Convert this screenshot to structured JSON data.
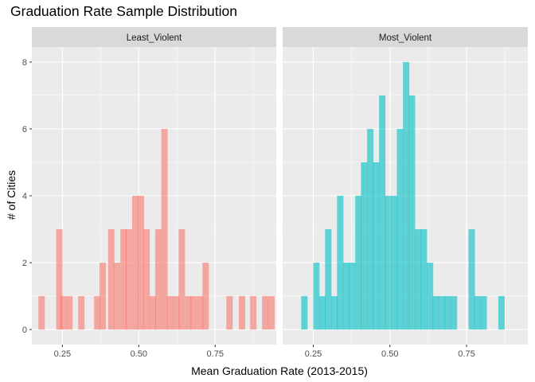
{
  "chart_data": {
    "type": "bar",
    "title": "Graduation Rate Sample Distribution",
    "xlabel": "Mean Graduation Rate (2013-2015)",
    "ylabel": "# of Cities",
    "xlim": [
      0.15,
      0.95
    ],
    "ylim": [
      -0.45,
      8.45
    ],
    "xticks": [
      {
        "value": 0.25,
        "label": "0.25"
      },
      {
        "value": 0.5,
        "label": "0.50"
      },
      {
        "value": 0.75,
        "label": "0.75"
      }
    ],
    "yticks": [
      {
        "value": 0,
        "label": "0"
      },
      {
        "value": 2,
        "label": "2"
      },
      {
        "value": 4,
        "label": "4"
      },
      {
        "value": 6,
        "label": "6"
      },
      {
        "value": 8,
        "label": "8"
      }
    ],
    "grid": true,
    "legend": "none",
    "bin_width": 0.0208,
    "panels": [
      {
        "name": "Least_Violent",
        "color": "#F8766D",
        "bins": [
          {
            "x": 0.182,
            "count": 1
          },
          {
            "x": 0.24,
            "count": 3
          },
          {
            "x": 0.253,
            "count": 1
          },
          {
            "x": 0.273,
            "count": 1
          },
          {
            "x": 0.312,
            "count": 1
          },
          {
            "x": 0.364,
            "count": 1
          },
          {
            "x": 0.382,
            "count": 2
          },
          {
            "x": 0.41,
            "count": 3
          },
          {
            "x": 0.429,
            "count": 2
          },
          {
            "x": 0.45,
            "count": 3
          },
          {
            "x": 0.468,
            "count": 3
          },
          {
            "x": 0.489,
            "count": 4
          },
          {
            "x": 0.507,
            "count": 4
          },
          {
            "x": 0.526,
            "count": 3
          },
          {
            "x": 0.546,
            "count": 1
          },
          {
            "x": 0.564,
            "count": 3
          },
          {
            "x": 0.584,
            "count": 6
          },
          {
            "x": 0.603,
            "count": 1
          },
          {
            "x": 0.623,
            "count": 1
          },
          {
            "x": 0.641,
            "count": 3
          },
          {
            "x": 0.662,
            "count": 1
          },
          {
            "x": 0.68,
            "count": 1
          },
          {
            "x": 0.701,
            "count": 1
          },
          {
            "x": 0.719,
            "count": 2
          },
          {
            "x": 0.797,
            "count": 1
          },
          {
            "x": 0.838,
            "count": 1
          },
          {
            "x": 0.875,
            "count": 1
          },
          {
            "x": 0.914,
            "count": 1
          },
          {
            "x": 0.934,
            "count": 1
          }
        ]
      },
      {
        "name": "Most_Violent",
        "color": "#00BFC4",
        "bins": [
          {
            "x": 0.221,
            "count": 1
          },
          {
            "x": 0.26,
            "count": 2
          },
          {
            "x": 0.28,
            "count": 1
          },
          {
            "x": 0.299,
            "count": 3
          },
          {
            "x": 0.319,
            "count": 1
          },
          {
            "x": 0.338,
            "count": 4
          },
          {
            "x": 0.358,
            "count": 2
          },
          {
            "x": 0.377,
            "count": 2
          },
          {
            "x": 0.397,
            "count": 4
          },
          {
            "x": 0.416,
            "count": 5
          },
          {
            "x": 0.436,
            "count": 6
          },
          {
            "x": 0.455,
            "count": 5
          },
          {
            "x": 0.475,
            "count": 7
          },
          {
            "x": 0.494,
            "count": 4
          },
          {
            "x": 0.514,
            "count": 4
          },
          {
            "x": 0.533,
            "count": 6
          },
          {
            "x": 0.553,
            "count": 8
          },
          {
            "x": 0.572,
            "count": 7
          },
          {
            "x": 0.592,
            "count": 3
          },
          {
            "x": 0.611,
            "count": 3
          },
          {
            "x": 0.631,
            "count": 2
          },
          {
            "x": 0.65,
            "count": 1
          },
          {
            "x": 0.67,
            "count": 1
          },
          {
            "x": 0.689,
            "count": 1
          },
          {
            "x": 0.709,
            "count": 1
          },
          {
            "x": 0.767,
            "count": 3
          },
          {
            "x": 0.786,
            "count": 1
          },
          {
            "x": 0.806,
            "count": 1
          },
          {
            "x": 0.864,
            "count": 1
          }
        ]
      }
    ]
  }
}
